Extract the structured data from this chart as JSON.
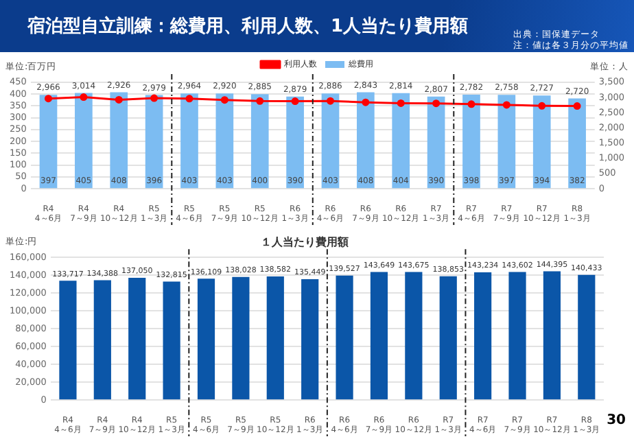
{
  "chart_data": [
    {
      "type": "bar",
      "title": "宿泊型自立訓練：総費用、利用人数、1人当たり費用額",
      "annotations": [
        "出典：国保連データ",
        "注：値は各３月分の平均値"
      ],
      "ylabel": "単位:百万円",
      "y2label": "単位：人",
      "categories": [
        "R4\n4～6月",
        "R4\n7～9月",
        "R4\n10～12月",
        "R5\n1～3月",
        "R5\n4～6月",
        "R5\n7～9月",
        "R5\n10～12月",
        "R6\n1～3月",
        "R6\n4～6月",
        "R6\n7～9月",
        "R6\n10～12月",
        "R7\n1～3月",
        "R7\n4～6月",
        "R7\n7～9月",
        "R7\n10～12月",
        "R8\n1～3月"
      ],
      "series": [
        {
          "name": "総費用",
          "type": "bar",
          "color": "#7cbcf2",
          "values": [
            397,
            405,
            408,
            396,
            403,
            403,
            400,
            390,
            403,
            408,
            404,
            390,
            398,
            397,
            394,
            382
          ],
          "value_labels": [
            "397",
            "405",
            "408",
            "396",
            "403",
            "403",
            "400",
            "390",
            "403",
            "408",
            "404",
            "390",
            "398",
            "397",
            "394",
            "382"
          ]
        },
        {
          "name": "利用人数",
          "type": "line",
          "axis": "y2",
          "color": "#ff0000",
          "values": [
            2966,
            3014,
            2926,
            2979,
            2964,
            2920,
            2885,
            2879,
            2886,
            2843,
            2814,
            2807,
            2782,
            2758,
            2727,
            2720
          ],
          "value_labels": [
            "2,966",
            "3,014",
            "2,926",
            "2,979",
            "2,964",
            "2,920",
            "2,885",
            "2,879",
            "2,886",
            "2,843",
            "2,814",
            "2,807",
            "2,782",
            "2,758",
            "2,727",
            "2,720"
          ]
        }
      ],
      "ylim": [
        0,
        450
      ],
      "yticks": [
        0,
        50,
        100,
        150,
        200,
        250,
        300,
        350,
        400,
        450
      ],
      "y2lim": [
        0,
        3500
      ],
      "y2ticks": [
        0,
        500,
        {
          "value": 1000,
          "label": "1,000"
        },
        {
          "value": 1500,
          "label": "1,500"
        },
        {
          "value": 2000,
          "label": "2,000"
        },
        {
          "value": 2500,
          "label": "2,500"
        },
        {
          "value": 3000,
          "label": "3,000"
        },
        {
          "value": 3500,
          "label": "3,500"
        }
      ],
      "grid": "y",
      "legend": "top",
      "marker": "circle"
    },
    {
      "type": "bar",
      "title": "１人当たり費用額",
      "ylabel": "単位:円",
      "annotations": [
        "30"
      ],
      "categories": [
        "R4\n4～6月",
        "R4\n7～9月",
        "R4\n10～12月",
        "R5\n1～3月",
        "R5\n4～6月",
        "R5\n7～9月",
        "R5\n10～12月",
        "R6\n1～3月",
        "R6\n4～6月",
        "R6\n7～9月",
        "R6\n10～12月",
        "R7\n1～3月",
        "R7\n4～6月",
        "R7\n7～9月",
        "R7\n10～12月",
        "R8\n1～3月"
      ],
      "series": [
        {
          "color": "#0b56a8",
          "values": [
            133717,
            134388,
            137050,
            132815,
            136109,
            138028,
            138582,
            135449,
            139527,
            143649,
            143675,
            138853,
            143234,
            143602,
            144395,
            140433
          ],
          "value_labels": [
            "133,717",
            "134,388",
            "137,050",
            "132,815",
            "136,109",
            "138,028",
            "138,582",
            "135,449",
            "139,527",
            "143,649",
            "143,675",
            "138,853",
            "143,234",
            "143,602",
            "144,395",
            "140,433"
          ]
        }
      ],
      "ylim": [
        0,
        160000
      ],
      "yticks": [
        0,
        {
          "value": 20000,
          "label": "20,000"
        },
        {
          "value": 40000,
          "label": "40,000"
        },
        {
          "value": 60000,
          "label": "60,000"
        },
        {
          "value": 80000,
          "label": "80,000"
        },
        {
          "value": 100000,
          "label": "100,000"
        },
        {
          "value": 120000,
          "label": "120,000"
        },
        {
          "value": 140000,
          "label": "140,000"
        },
        {
          "value": 160000,
          "label": "160,000"
        }
      ],
      "grid": "y"
    }
  ]
}
